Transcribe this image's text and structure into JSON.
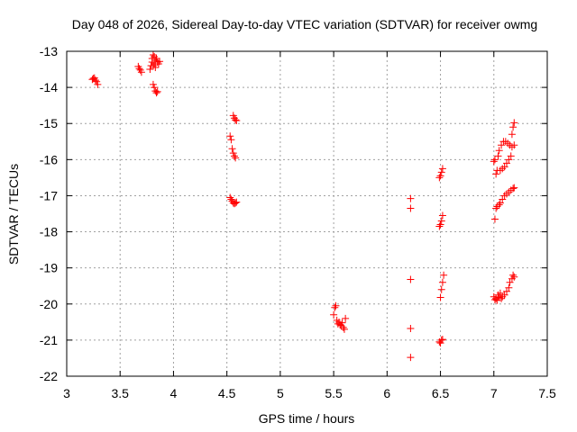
{
  "chart_data": {
    "type": "scatter",
    "title": "Day 048 of 2026, Sidereal Day-to-day VTEC variation (SDTVAR) for receiver owmg",
    "xlabel": "GPS time / hours",
    "ylabel": "SDTVAR / TECUs",
    "xlim": [
      3,
      7.5
    ],
    "ylim": [
      -22,
      -13
    ],
    "xticks": [
      3,
      3.5,
      4,
      4.5,
      5,
      5.5,
      6,
      6.5,
      7,
      7.5
    ],
    "xtick_labels": [
      "3",
      "3.5",
      "4",
      "4.5",
      "5",
      "5.5",
      "6",
      "6.5",
      "7",
      "7.5"
    ],
    "yticks": [
      -13,
      -14,
      -15,
      -16,
      -17,
      -18,
      -19,
      -20,
      -21,
      -22
    ],
    "ytick_labels": [
      "-13",
      "-14",
      "-15",
      "-16",
      "-17",
      "-18",
      "-19",
      "-20",
      "-21",
      "-22"
    ],
    "grid": true,
    "marker": "+",
    "color": "#ff0000",
    "series": [
      {
        "name": "SDTVAR",
        "points": [
          [
            3.24,
            -13.78
          ],
          [
            3.25,
            -13.75
          ],
          [
            3.26,
            -13.74
          ],
          [
            3.27,
            -13.8
          ],
          [
            3.28,
            -13.84
          ],
          [
            3.29,
            -13.92
          ],
          [
            3.67,
            -13.42
          ],
          [
            3.68,
            -13.48
          ],
          [
            3.69,
            -13.52
          ],
          [
            3.7,
            -13.58
          ],
          [
            3.78,
            -13.5
          ],
          [
            3.79,
            -13.4
          ],
          [
            3.8,
            -13.3
          ],
          [
            3.8,
            -13.2
          ],
          [
            3.81,
            -13.1
          ],
          [
            3.81,
            -13.4
          ],
          [
            3.82,
            -13.35
          ],
          [
            3.82,
            -13.15
          ],
          [
            3.83,
            -13.45
          ],
          [
            3.83,
            -13.25
          ],
          [
            3.84,
            -13.2
          ],
          [
            3.85,
            -13.3
          ],
          [
            3.86,
            -13.35
          ],
          [
            3.87,
            -13.28
          ],
          [
            3.81,
            -13.92
          ],
          [
            3.82,
            -14.0
          ],
          [
            3.83,
            -14.1
          ],
          [
            3.84,
            -14.15
          ],
          [
            3.85,
            -14.12
          ],
          [
            4.53,
            -15.35
          ],
          [
            4.54,
            -15.45
          ],
          [
            4.55,
            -15.7
          ],
          [
            4.56,
            -15.82
          ],
          [
            4.57,
            -15.9
          ],
          [
            4.58,
            -15.95
          ],
          [
            4.56,
            -14.78
          ],
          [
            4.57,
            -14.85
          ],
          [
            4.58,
            -14.9
          ],
          [
            4.59,
            -14.92
          ],
          [
            4.53,
            -17.05
          ],
          [
            4.54,
            -17.1
          ],
          [
            4.55,
            -17.15
          ],
          [
            4.56,
            -17.2
          ],
          [
            4.57,
            -17.22
          ],
          [
            4.58,
            -17.2
          ],
          [
            4.59,
            -17.18
          ],
          [
            5.5,
            -20.3
          ],
          [
            5.51,
            -20.1
          ],
          [
            5.52,
            -20.05
          ],
          [
            5.53,
            -20.45
          ],
          [
            5.54,
            -20.55
          ],
          [
            5.55,
            -20.5
          ],
          [
            5.56,
            -20.58
          ],
          [
            5.57,
            -20.6
          ],
          [
            5.58,
            -20.52
          ],
          [
            5.59,
            -20.65
          ],
          [
            5.6,
            -20.7
          ],
          [
            5.61,
            -20.4
          ],
          [
            6.22,
            -17.08
          ],
          [
            6.22,
            -17.35
          ],
          [
            6.22,
            -19.32
          ],
          [
            6.22,
            -20.68
          ],
          [
            6.22,
            -21.48
          ],
          [
            6.49,
            -17.85
          ],
          [
            6.5,
            -17.8
          ],
          [
            6.51,
            -17.7
          ],
          [
            6.52,
            -17.55
          ],
          [
            6.49,
            -16.5
          ],
          [
            6.5,
            -16.45
          ],
          [
            6.51,
            -16.35
          ],
          [
            6.52,
            -16.25
          ],
          [
            6.5,
            -19.82
          ],
          [
            6.51,
            -19.6
          ],
          [
            6.52,
            -19.4
          ],
          [
            6.53,
            -19.2
          ],
          [
            6.49,
            -21.05
          ],
          [
            6.5,
            -21.08
          ],
          [
            6.51,
            -21.0
          ],
          [
            6.52,
            -20.98
          ],
          [
            7.0,
            -16.05
          ],
          [
            7.01,
            -16.0
          ],
          [
            7.02,
            -16.4
          ],
          [
            7.03,
            -16.3
          ],
          [
            7.04,
            -15.9
          ],
          [
            7.05,
            -15.75
          ],
          [
            7.06,
            -16.3
          ],
          [
            7.07,
            -15.6
          ],
          [
            7.08,
            -16.25
          ],
          [
            7.09,
            -15.5
          ],
          [
            7.1,
            -16.2
          ],
          [
            7.11,
            -15.5
          ],
          [
            7.12,
            -16.1
          ],
          [
            7.13,
            -15.55
          ],
          [
            7.14,
            -16.0
          ],
          [
            7.15,
            -15.6
          ],
          [
            7.16,
            -15.9
          ],
          [
            7.17,
            -15.3
          ],
          [
            7.17,
            -15.65
          ],
          [
            7.18,
            -15.1
          ],
          [
            7.19,
            -15.6
          ],
          [
            7.19,
            -14.98
          ],
          [
            7.01,
            -17.65
          ],
          [
            7.02,
            -17.35
          ],
          [
            7.03,
            -17.3
          ],
          [
            7.05,
            -17.25
          ],
          [
            7.06,
            -17.2
          ],
          [
            7.08,
            -17.1
          ],
          [
            7.1,
            -17.0
          ],
          [
            7.12,
            -16.95
          ],
          [
            7.14,
            -16.9
          ],
          [
            7.16,
            -16.85
          ],
          [
            7.18,
            -16.8
          ],
          [
            7.19,
            -16.78
          ],
          [
            7.0,
            -19.8
          ],
          [
            7.01,
            -19.88
          ],
          [
            7.02,
            -19.85
          ],
          [
            7.03,
            -19.9
          ],
          [
            7.04,
            -19.75
          ],
          [
            7.05,
            -19.82
          ],
          [
            7.06,
            -19.7
          ],
          [
            7.07,
            -19.85
          ],
          [
            7.08,
            -19.8
          ],
          [
            7.1,
            -19.75
          ],
          [
            7.12,
            -19.65
          ],
          [
            7.14,
            -19.55
          ],
          [
            7.15,
            -19.4
          ],
          [
            7.17,
            -19.3
          ],
          [
            7.18,
            -19.2
          ],
          [
            7.19,
            -19.25
          ]
        ]
      }
    ]
  }
}
